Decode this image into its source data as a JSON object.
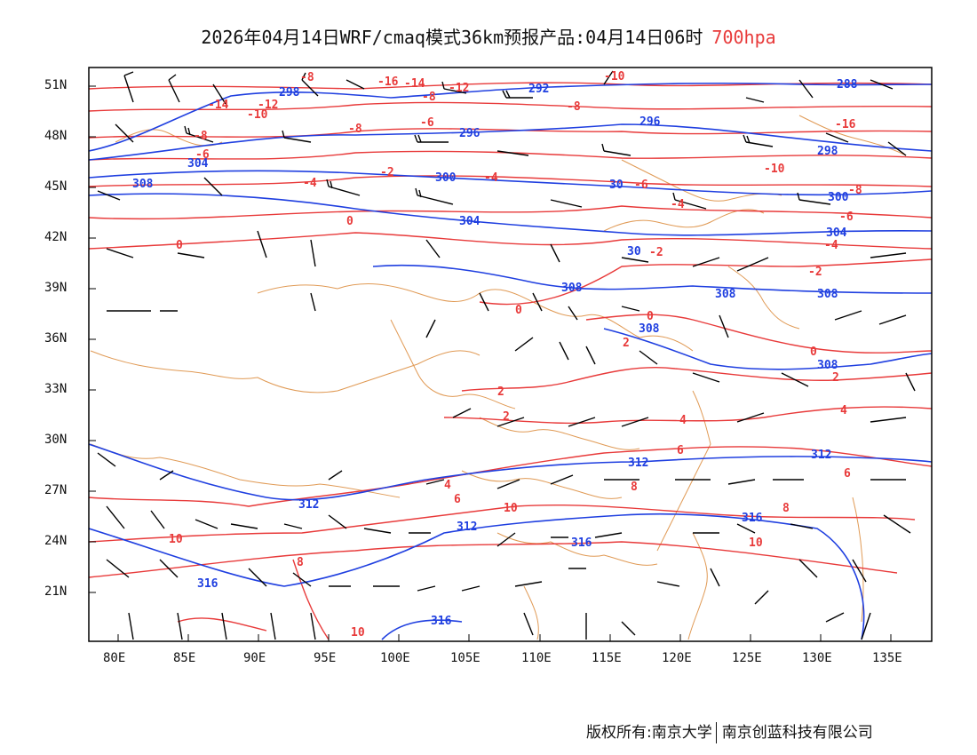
{
  "title": {
    "main": "2026年04月14日WRF/cmaq模式36km预报产品:04月14日06时",
    "level": "700hpa",
    "level_color": "#e83a3a"
  },
  "axes": {
    "lat_labels": [
      "51N",
      "48N",
      "45N",
      "42N",
      "39N",
      "36N",
      "33N",
      "30N",
      "27N",
      "24N",
      "21N"
    ],
    "lon_labels": [
      "80E",
      "85E",
      "90E",
      "95E",
      "100E",
      "105E",
      "110E",
      "115E",
      "120E",
      "125E",
      "130E",
      "135E"
    ]
  },
  "contours": {
    "temperature_color": "#e83a3a",
    "height_color": "#1f3fe0",
    "border_color": "#e0a060",
    "wind_color": "#000000",
    "temperature_labels": [
      "-16",
      "-14",
      "-12",
      "-10",
      "-8",
      "-6",
      "-4",
      "-2",
      "0",
      "2",
      "4",
      "6",
      "8",
      "10"
    ],
    "height_labels": [
      "296",
      "300",
      "304",
      "308",
      "312",
      "316"
    ]
  },
  "footer": {
    "copyright": "版权所有:南京大学",
    "company": "南京创蓝科技有限公司"
  }
}
